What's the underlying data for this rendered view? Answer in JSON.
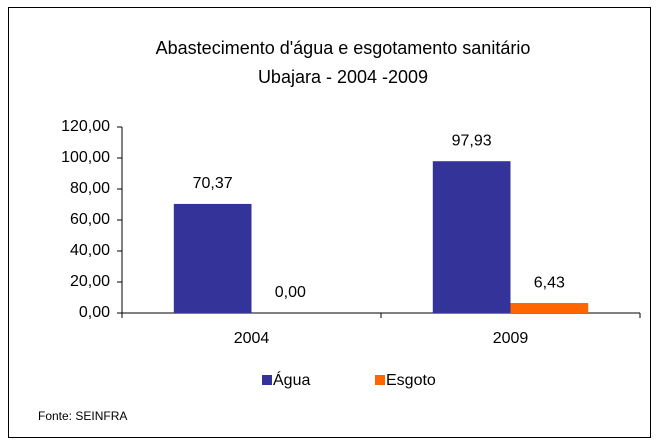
{
  "chart_data": {
    "type": "bar",
    "title": "Abastecimento d'água e esgotamento sanitário",
    "subtitle": "Ubajara - 2004 -2009",
    "categories": [
      "2004",
      "2009"
    ],
    "series": [
      {
        "name": "Água",
        "color": "#333399",
        "values": [
          70.37,
          97.93
        ],
        "value_labels": [
          "70,37",
          "97,93"
        ]
      },
      {
        "name": "Esgoto",
        "color": "#ff6600",
        "values": [
          0,
          6.43
        ],
        "value_labels": [
          "0,00",
          "6,43"
        ]
      }
    ],
    "ylim": [
      0,
      120
    ],
    "yticks": [
      {
        "value": 0,
        "label": "0,00"
      },
      {
        "value": 20,
        "label": "20,00"
      },
      {
        "value": 40,
        "label": "40,00"
      },
      {
        "value": 60,
        "label": "60,00"
      },
      {
        "value": 80,
        "label": "80,00"
      },
      {
        "value": 100,
        "label": "100,00"
      },
      {
        "value": 120,
        "label": "120,00"
      }
    ],
    "legend": "bottom",
    "note": "Fonte: SEINFRA"
  }
}
